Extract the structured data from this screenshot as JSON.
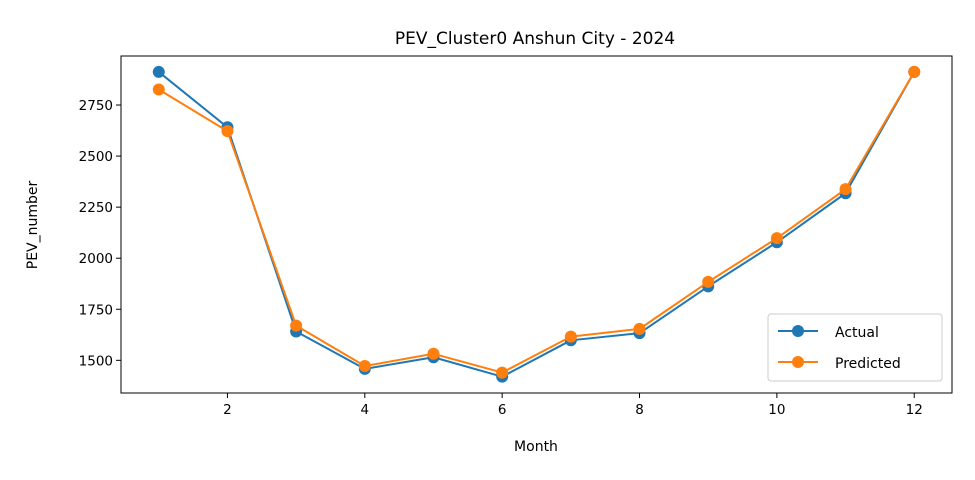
{
  "chart_data": {
    "type": "line",
    "title": "PEV_Cluster0 Anshun City - 2024",
    "xlabel": "Month",
    "ylabel": "PEV_number",
    "xlim": [
      0.45,
      12.55
    ],
    "ylim": [
      1340,
      2990
    ],
    "x_ticks": [
      2,
      4,
      6,
      8,
      10,
      12
    ],
    "y_ticks": [
      1500,
      1750,
      2000,
      2250,
      2500,
      2750
    ],
    "grid": false,
    "legend_position": "lower-right",
    "x": [
      1,
      2,
      3,
      4,
      5,
      6,
      7,
      8,
      9,
      10,
      11,
      12
    ],
    "series": [
      {
        "name": "Actual",
        "color": "#1f77b4",
        "values": [
          2912,
          2641,
          1641,
          1458,
          1515,
          1420,
          1598,
          1633,
          1862,
          2078,
          2318,
          2912
        ]
      },
      {
        "name": "Predicted",
        "color": "#ff7f0e",
        "values": [
          2826,
          2622,
          1670,
          1472,
          1532,
          1440,
          1616,
          1654,
          1884,
          2098,
          2338,
          2912
        ]
      }
    ]
  }
}
